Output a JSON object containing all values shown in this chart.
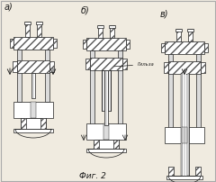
{
  "title": "Фиг. 2",
  "labels": [
    "а)",
    "б)",
    "в)"
  ],
  "label_note": "Гильза",
  "bg_color": "#f0ebe0",
  "hatch_color": "#555555",
  "line_color": "#1a1a1a",
  "fig_width": 2.4,
  "fig_height": 2.02,
  "dpi": 100
}
